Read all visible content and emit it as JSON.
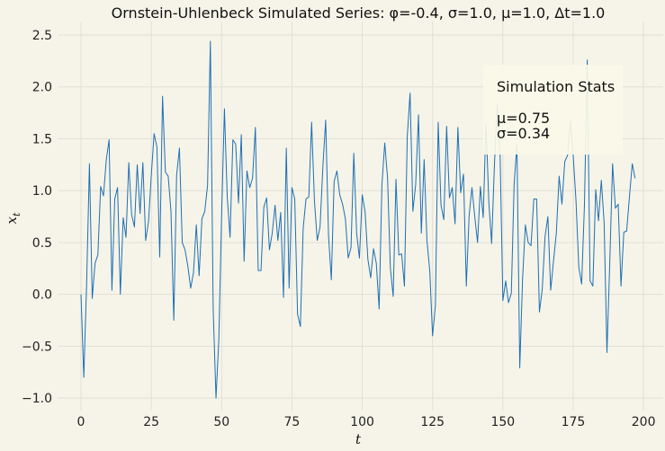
{
  "chart_data": {
    "type": "line",
    "title": "Ornstein-Uhlenbeck Simulated Series: φ=-0.4, σ=1.0, μ=1.0, Δt=1.0",
    "xlabel": "t",
    "ylabel": "x_t",
    "xlim": [
      -8,
      207
    ],
    "ylim": [
      -1.12,
      2.63
    ],
    "xticks": [
      0,
      25,
      50,
      75,
      100,
      125,
      150,
      175,
      200
    ],
    "yticks": [
      -1.0,
      -0.5,
      0.0,
      0.5,
      1.0,
      1.5,
      2.0,
      2.5
    ],
    "ytick_labels": [
      "−1.0",
      "−0.5",
      "0.0",
      "0.5",
      "1.0",
      "1.5",
      "2.0",
      "2.5"
    ],
    "grid": true,
    "line_color": "#1f6fb4",
    "background": "#f6f4e8",
    "series": [
      {
        "values": [
          0.0,
          -0.8,
          0.1,
          1.26,
          -0.04,
          0.3,
          0.38,
          1.04,
          0.95,
          1.3,
          1.49,
          0.04,
          0.92,
          1.03,
          0.0,
          0.74,
          0.55,
          1.27,
          0.77,
          0.65,
          1.25,
          0.78,
          1.27,
          0.52,
          0.7,
          1.15,
          1.55,
          1.42,
          0.36,
          1.91,
          1.18,
          1.14,
          0.8,
          -0.25,
          1.15,
          1.41,
          0.5,
          0.43,
          0.27,
          0.06,
          0.21,
          0.67,
          0.18,
          0.73,
          0.8,
          1.05,
          2.44,
          -0.14,
          -1.0,
          -0.44,
          0.76,
          1.79,
          0.94,
          0.55,
          1.49,
          1.45,
          0.88,
          1.54,
          0.32,
          1.19,
          1.03,
          1.12,
          1.61,
          0.23,
          0.23,
          0.84,
          0.93,
          0.43,
          0.59,
          0.86,
          0.52,
          0.79,
          -0.03,
          1.41,
          0.06,
          1.03,
          0.92,
          -0.19,
          -0.31,
          0.64,
          0.92,
          0.94,
          1.66,
          0.9,
          0.52,
          0.65,
          1.23,
          1.68,
          0.57,
          0.14,
          1.09,
          1.19,
          0.96,
          0.87,
          0.73,
          0.35,
          0.45,
          1.36,
          0.59,
          0.35,
          0.96,
          0.8,
          0.34,
          0.16,
          0.44,
          0.3,
          -0.14,
          1.06,
          1.46,
          1.12,
          0.25,
          -0.02,
          1.11,
          0.38,
          0.39,
          0.08,
          1.52,
          1.94,
          0.8,
          1.06,
          1.73,
          0.59,
          1.3,
          0.52,
          0.23,
          -0.4,
          -0.11,
          1.66,
          0.86,
          0.72,
          1.62,
          0.93,
          1.03,
          0.68,
          1.61,
          0.98,
          1.16,
          0.08,
          0.76,
          1.03,
          0.75,
          0.5,
          1.04,
          0.74,
          1.65,
          0.89,
          0.49,
          1.25,
          1.83,
          1.36,
          -0.06,
          0.13,
          -0.08,
          0.01,
          1.06,
          1.45,
          -0.71,
          0.15,
          0.67,
          0.5,
          0.47,
          0.92,
          0.92,
          -0.17,
          0.05,
          0.56,
          0.75,
          0.04,
          0.32,
          0.59,
          1.14,
          0.87,
          1.28,
          1.34,
          1.67,
          1.34,
          0.9,
          0.26,
          0.1,
          0.86,
          2.26,
          0.13,
          0.08,
          1.01,
          0.71,
          1.1,
          0.69,
          -0.56,
          0.3,
          1.26,
          0.83,
          0.87,
          0.08,
          0.6,
          0.61,
          0.94,
          1.26,
          1.12
        ]
      }
    ]
  },
  "legend": {
    "title": "Simulation Stats",
    "line1": "μ=0.75",
    "line2": "σ=0.34"
  }
}
